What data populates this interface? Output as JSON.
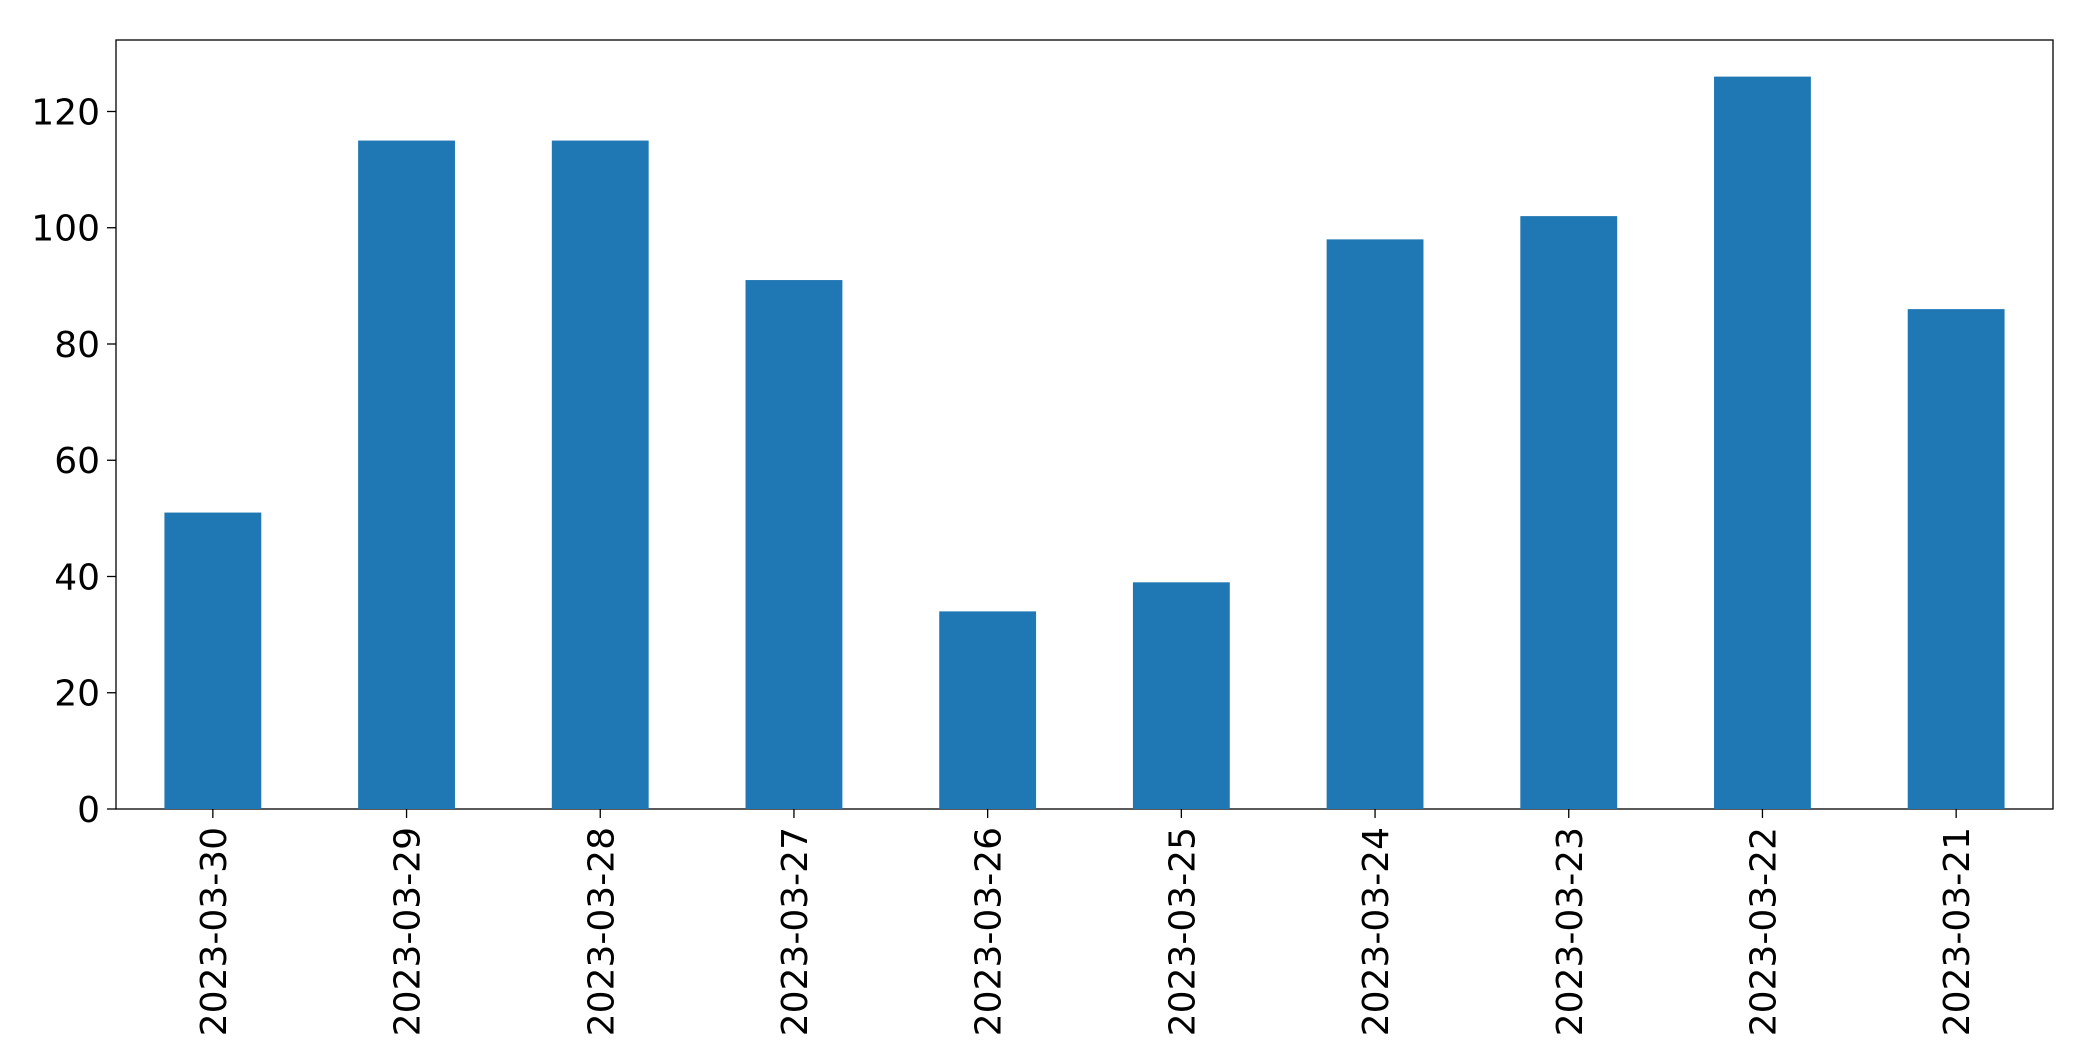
{
  "chart_data": {
    "type": "bar",
    "categories": [
      "2023-03-30",
      "2023-03-29",
      "2023-03-28",
      "2023-03-27",
      "2023-03-26",
      "2023-03-25",
      "2023-03-24",
      "2023-03-23",
      "2023-03-22",
      "2023-03-21"
    ],
    "values": [
      51,
      115,
      115,
      91,
      34,
      39,
      98,
      102,
      126,
      86
    ],
    "color": "#1f77b4",
    "ylim": [
      0,
      132.3
    ],
    "yticks": [
      0,
      20,
      40,
      60,
      80,
      100,
      120
    ],
    "grid": false
  }
}
